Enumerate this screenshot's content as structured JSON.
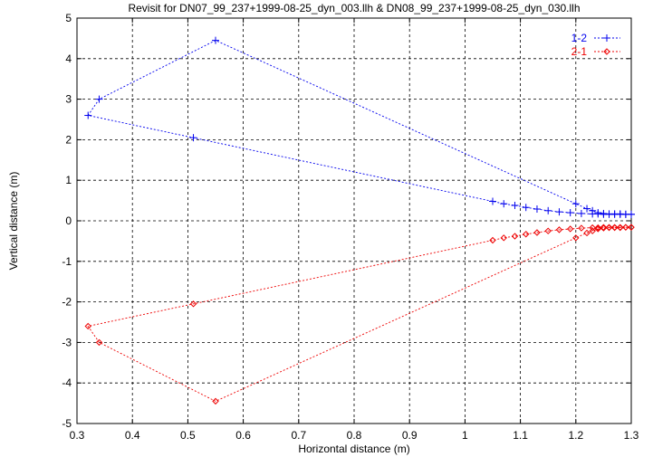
{
  "chart_data": {
    "type": "line",
    "title": "Revisit for DN07_99_237+1999-08-25_dyn_003.llh & DN08_99_237+1999-08-25_dyn_030.llh",
    "xlabel": "Horizontal distance (m)",
    "ylabel": "Vertical distance (m)",
    "xlim": [
      0.3,
      1.3
    ],
    "ylim": [
      -5,
      5
    ],
    "xticks": [
      "0.3",
      "0.4",
      "0.5",
      "0.6",
      "0.7",
      "0.8",
      "0.9",
      "1",
      "1.1",
      "1.2",
      "1.3"
    ],
    "yticks": [
      "-5",
      "-4",
      "-3",
      "-2",
      "-1",
      "0",
      "1",
      "2",
      "3",
      "4",
      "5"
    ],
    "grid": true,
    "legend_position": "top-right",
    "colors": {
      "series1": "#0000ee",
      "series2": "#ee0000"
    },
    "series": [
      {
        "name": "1-2",
        "marker": "plus",
        "x": [
          1.3,
          1.29,
          1.28,
          1.27,
          1.26,
          1.25,
          1.24,
          1.23,
          1.22,
          1.2,
          0.55,
          0.34,
          0.32,
          0.51,
          1.05,
          1.07,
          1.09,
          1.11,
          1.13,
          1.15,
          1.17,
          1.19,
          1.21,
          1.23,
          1.24,
          1.25,
          1.26,
          1.27,
          1.28,
          1.29,
          1.3
        ],
        "y": [
          0.16,
          0.16,
          0.17,
          0.17,
          0.17,
          0.18,
          0.2,
          0.25,
          0.3,
          0.42,
          4.45,
          3.0,
          2.6,
          2.05,
          0.48,
          0.42,
          0.38,
          0.33,
          0.29,
          0.25,
          0.22,
          0.2,
          0.18,
          0.17,
          0.17,
          0.16,
          0.16,
          0.16,
          0.16,
          0.16,
          0.16
        ]
      },
      {
        "name": "2-1",
        "marker": "diamond",
        "x": [
          1.3,
          1.29,
          1.28,
          1.27,
          1.26,
          1.25,
          1.24,
          1.23,
          1.22,
          1.2,
          0.55,
          0.34,
          0.32,
          0.51,
          1.05,
          1.07,
          1.09,
          1.11,
          1.13,
          1.15,
          1.17,
          1.19,
          1.21,
          1.23,
          1.24,
          1.25,
          1.26,
          1.27,
          1.28,
          1.29,
          1.3
        ],
        "y": [
          -0.16,
          -0.16,
          -0.17,
          -0.17,
          -0.17,
          -0.18,
          -0.2,
          -0.25,
          -0.3,
          -0.42,
          -4.45,
          -3.0,
          -2.6,
          -2.05,
          -0.48,
          -0.42,
          -0.38,
          -0.33,
          -0.29,
          -0.25,
          -0.22,
          -0.2,
          -0.18,
          -0.17,
          -0.17,
          -0.16,
          -0.16,
          -0.16,
          -0.16,
          -0.16,
          -0.16
        ]
      }
    ]
  }
}
